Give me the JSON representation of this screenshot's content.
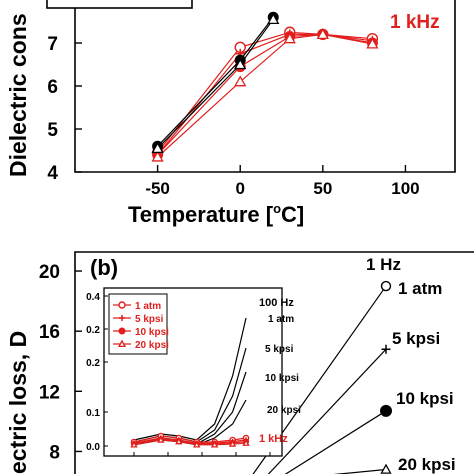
{
  "chart_data": [
    {
      "type": "line",
      "panel": "a",
      "title": "",
      "xlabel": "Temperature [°C]",
      "xlabel_parts": {
        "main": "Temperature [",
        "sup": "o",
        "tail": "C]"
      },
      "ylabel": "Dielectric cons",
      "xlim": [
        -100,
        130
      ],
      "ylim": [
        4,
        8
      ],
      "xticks": [
        -50,
        0,
        50,
        100
      ],
      "yticks": [
        4,
        5,
        6,
        7
      ],
      "annotation": "1 kHz",
      "series": [
        {
          "color": "#e0201e",
          "marker": "open-circle",
          "x": [
            -50,
            0,
            30,
            50,
            80
          ],
          "y": [
            4.45,
            6.9,
            7.25,
            7.2,
            7.1
          ]
        },
        {
          "color": "#e0201e",
          "marker": "plus",
          "x": [
            -50,
            0,
            30,
            50,
            80
          ],
          "y": [
            4.4,
            6.75,
            7.2,
            7.2,
            7.05
          ]
        },
        {
          "color": "#e0201e",
          "marker": "filled-circle",
          "x": [
            -50,
            0,
            30,
            50,
            80
          ],
          "y": [
            4.4,
            6.45,
            7.15,
            7.2,
            7.0
          ]
        },
        {
          "color": "#e0201e",
          "marker": "open-triangle",
          "x": [
            -50,
            0,
            30,
            50,
            80
          ],
          "y": [
            4.35,
            6.1,
            7.1,
            7.2,
            6.98
          ]
        },
        {
          "color": "#000000",
          "marker": "filled-circle",
          "x": [
            -50,
            0,
            20
          ],
          "y": [
            4.6,
            6.6,
            7.6
          ]
        },
        {
          "color": "#000000",
          "marker": "open-triangle",
          "x": [
            -50,
            0,
            20
          ],
          "y": [
            4.55,
            6.5,
            7.55
          ]
        }
      ]
    },
    {
      "type": "line",
      "panel": "b",
      "panel_label": "(b)",
      "title": "",
      "xlabel": "",
      "ylabel": "ectric loss, D",
      "ylim": [
        6.5,
        21
      ],
      "yticks": [
        8,
        12,
        16,
        20
      ],
      "header_note": "1 Hz",
      "point_labels": [
        "1 atm",
        "5 kpsi",
        "10 kpsi",
        "20 kpsi"
      ],
      "series": [
        {
          "name": "1 atm",
          "color": "#000000",
          "marker": "open-circle",
          "x": [
            40,
            78
          ],
          "y": [
            6.2,
            19.0
          ]
        },
        {
          "name": "5 kpsi",
          "color": "#000000",
          "marker": "plus",
          "x": [
            44,
            78
          ],
          "y": [
            6.2,
            14.8
          ]
        },
        {
          "name": "10 kpsi",
          "color": "#000000",
          "marker": "filled-circle",
          "x": [
            48,
            78
          ],
          "y": [
            6.2,
            10.7
          ]
        },
        {
          "name": "20 kpsi",
          "color": "#000000",
          "marker": "open-triangle",
          "x": [
            52,
            78
          ],
          "y": [
            6.2,
            6.8
          ]
        }
      ],
      "inset": {
        "type": "line",
        "ylim": [
          0,
          0.4
        ],
        "yticks": [
          "0.4",
          "0.2",
          "0.2",
          "0.1",
          "0.0"
        ],
        "legend": [
          "1 atm",
          "5 kpsi",
          "10 kpsi",
          "20 kpsi"
        ],
        "legend_position": "upper-left",
        "annotation_top": "100 Hz",
        "annotation_bottom": "1 kHz",
        "curve_labels": [
          "1 atm",
          "5 kpsi",
          "10 kpsi",
          "20 kpsi"
        ],
        "series": [
          {
            "name": "1 atm",
            "color": "#000000",
            "x": [
              -50,
              -20,
              0,
              20,
              40,
              60,
              75
            ],
            "y": [
              0.04,
              0.055,
              0.05,
              0.04,
              0.08,
              0.2,
              0.345
            ]
          },
          {
            "name": "5 kpsi",
            "color": "#000000",
            "x": [
              -50,
              -20,
              0,
              20,
              40,
              60,
              75
            ],
            "y": [
              0.035,
              0.05,
              0.045,
              0.035,
              0.065,
              0.15,
              0.27
            ]
          },
          {
            "name": "10 kpsi",
            "color": "#000000",
            "x": [
              -50,
              -20,
              0,
              20,
              40,
              60,
              75
            ],
            "y": [
              0.03,
              0.045,
              0.04,
              0.03,
              0.055,
              0.11,
              0.21
            ]
          },
          {
            "name": "20 kpsi",
            "color": "#000000",
            "x": [
              -50,
              -20,
              0,
              20,
              40,
              60,
              75
            ],
            "y": [
              0.028,
              0.04,
              0.036,
              0.028,
              0.045,
              0.08,
              0.14
            ]
          },
          {
            "name": "1 atm",
            "color": "#e0201e",
            "marker": "open-circle",
            "x": [
              -50,
              -20,
              0,
              20,
              40,
              60,
              75
            ],
            "y": [
              0.035,
              0.05,
              0.045,
              0.035,
              0.035,
              0.04,
              0.045
            ]
          },
          {
            "name": "5 kpsi",
            "color": "#e0201e",
            "marker": "plus",
            "x": [
              -50,
              -20,
              0,
              20,
              40,
              60,
              75
            ],
            "y": [
              0.032,
              0.045,
              0.04,
              0.032,
              0.032,
              0.036,
              0.04
            ]
          },
          {
            "name": "10 kpsi",
            "color": "#e0201e",
            "marker": "filled-circle",
            "x": [
              -50,
              -20,
              0,
              20,
              40,
              60,
              75
            ],
            "y": [
              0.03,
              0.042,
              0.038,
              0.03,
              0.03,
              0.033,
              0.036
            ]
          },
          {
            "name": "20 kpsi",
            "color": "#e0201e",
            "marker": "open-triangle",
            "x": [
              -50,
              -20,
              0,
              20,
              40,
              60,
              75
            ],
            "y": [
              0.028,
              0.04,
              0.036,
              0.028,
              0.028,
              0.03,
              0.032
            ]
          }
        ]
      }
    }
  ]
}
